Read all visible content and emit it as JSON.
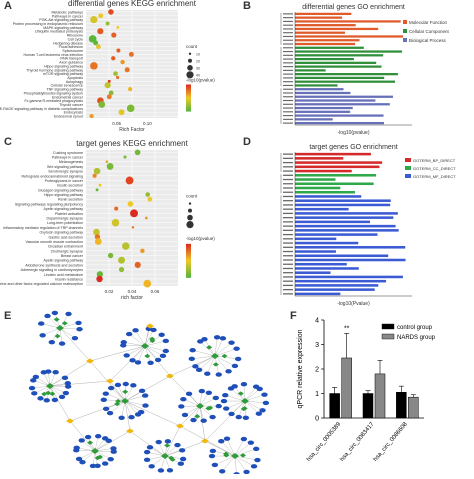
{
  "panels": {
    "A": {
      "label": "A",
      "title": "differential genes KEGG enrichment",
      "xlabel": "Rich Factor",
      "legend_count_title": "count",
      "legend_p_title": "-log10(pvalue)",
      "count_ticks": [
        "10",
        "20",
        "30",
        "40"
      ],
      "categories": [
        "Metabolic pathways",
        "Pathways in cancer",
        "PI3K-Akt signaling pathway",
        "Protein processing in endoplasmic reticulum",
        "MAPK signaling pathway",
        "Ubiquitin mediated proteolysis",
        "Ribosome",
        "Cell cycle",
        "Hedgehog disease",
        "Focal adhesion",
        "Spliceosome",
        "Human T-cell leukemia virus infection",
        "RNA transport",
        "Axon guidance",
        "Hippo signaling pathway",
        "Thyroid hormone signaling pathway",
        "mTOR signaling pathway",
        "Apoptosis",
        "Autophagy",
        "Cellular senescence",
        "TNF signaling pathway",
        "Phosphatidylinositol signaling system",
        "Endometrial cancer",
        "Fc gamma R-mediated phagocytosis",
        "Thyroid cancer",
        "AGE-RAGE signaling pathway in diabetic complications",
        "Endocytosis",
        "Endosomal sprout"
      ],
      "xticks": [
        "0.05",
        "0.10"
      ]
    },
    "B": {
      "label": "B",
      "title": "differential genes GO enrichment",
      "xlabel": "-log10(pvalue)",
      "legend": [
        "Molecular Function",
        "Cellular Component",
        "Biological Process"
      ]
    },
    "C": {
      "label": "C",
      "title": "target genes KEGG enrichment",
      "xlabel": "rich factor",
      "legend_count_title": "count",
      "legend_p_title": "-log10(pvalue)",
      "categories": [
        "Cushing syndrome",
        "Pathways in cancer",
        "Melanogenesis",
        "Wnt signaling pathway",
        "Serotonergic synapse",
        "Retrograde endocannabinoid signaling",
        "Proteoglycans in cancer",
        "Insulin secretion",
        "Glucagon signaling pathway",
        "Hippo signaling pathway",
        "Renin secretion",
        "Signaling pathways regulating pluripotency",
        "Apelin signaling pathway",
        "Platelet activation",
        "Dopaminergic synapse",
        "Long-term potentiation",
        "Inflammatory mediator regulation of TRP channels",
        "Oxytocin signaling pathway",
        "Gastric acid secretion",
        "Vascular smooth muscle contraction",
        "Circadian entrainment",
        "Cholinergic synapse",
        "Breast cancer",
        "Apelin signaling pathway",
        "Aldosterone synthesis and secretion",
        "Adrenergic signaling in cardiomyocytes",
        "Linoleic acid metabolism",
        "Insulin resistance",
        "Endocrine and other factor-regulated calcium reabsorption"
      ],
      "xticks": [
        "0.02",
        "0.04",
        "0.06"
      ]
    },
    "D": {
      "label": "D",
      "title": "target genes GO enrichment",
      "xlabel": "-log10(Pvalue)",
      "legend": [
        "GOTERM_BP_DIRECT",
        "GOTERM_CC_DIRECT",
        "GOTERM_MF_DIRECT"
      ]
    },
    "E": {
      "label": "E"
    },
    "F": {
      "label": "F",
      "ylabel": "qPCR relative expression",
      "significance": "**",
      "legend": [
        "control group",
        "NARDS group"
      ],
      "yticks": [
        "0",
        "1",
        "2",
        "3",
        "4"
      ]
    }
  },
  "chart_data": [
    {
      "type": "bar",
      "panel": "F",
      "categories": [
        "hsa_circ_0005389",
        "hsa_circ_0083417",
        "hsa_circ_0086608"
      ],
      "series": [
        {
          "name": "control group",
          "values": [
            1.0,
            1.0,
            1.05
          ],
          "errors": [
            0.25,
            0.12,
            0.25
          ]
        },
        {
          "name": "NARDS group",
          "values": [
            2.45,
            1.8,
            0.85
          ],
          "errors": [
            1.0,
            0.55,
            0.1
          ]
        }
      ],
      "ylabel": "qPCR relative expression",
      "ylim": [
        0,
        4
      ],
      "colors": {
        "control group": "#000000",
        "NARDS group": "#888888"
      },
      "legend_position": "top-right"
    }
  ]
}
